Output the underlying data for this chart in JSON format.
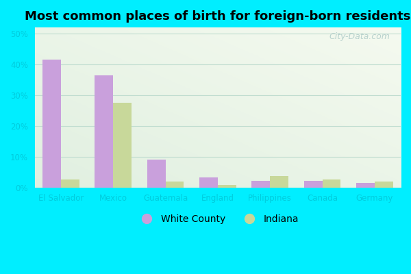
{
  "title": "Most common places of birth for foreign-born residents",
  "categories": [
    "El Salvador",
    "Mexico",
    "Guatemala",
    "England",
    "Philippines",
    "Canada",
    "Germany"
  ],
  "white_county": [
    41.5,
    36.5,
    9.0,
    3.2,
    2.2,
    2.2,
    1.5
  ],
  "indiana": [
    2.5,
    27.5,
    2.0,
    0.8,
    3.8,
    2.5,
    2.0
  ],
  "white_county_color": "#c9a0dc",
  "indiana_color": "#c8d89a",
  "background_outer": "#00eeff",
  "background_inner_tl": "#d6ede0",
  "background_inner_br": "#f0faf0",
  "bar_width": 0.35,
  "ylim": [
    0,
    52
  ],
  "yticks": [
    0,
    10,
    20,
    30,
    40,
    50
  ],
  "legend_labels": [
    "White County",
    "Indiana"
  ],
  "watermark": "City-Data.com",
  "title_fontsize": 13,
  "tick_color": "#00ccdd",
  "grid_color": "#c0ddd0"
}
